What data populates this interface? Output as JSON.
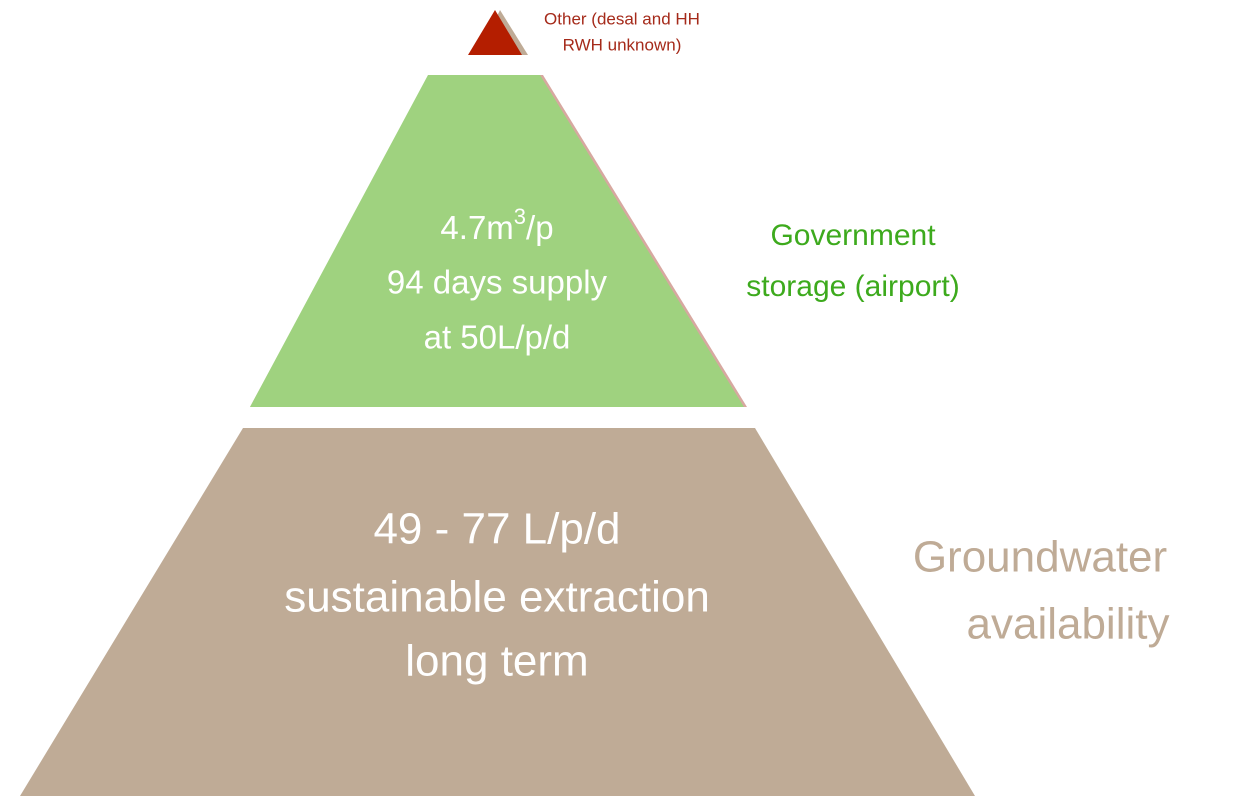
{
  "nodes": [
    {
      "label_lines": [
        "Other (desal and HH",
        "RWH unknown)"
      ]
    },
    {
      "label": {
        "base": "4.7m",
        "superscript": "3",
        "suffix": "/p"
      },
      "lines": [
        "94 days supply",
        "at 50L/p/d"
      ],
      "side_label_lines": [
        "Government",
        "storage (airport)"
      ]
    },
    {
      "lines": [
        "49 - 77 L/p/d",
        "sustainable extraction",
        "long term"
      ],
      "side_label_lines": [
        "Groundwater",
        "availability"
      ]
    }
  ]
}
